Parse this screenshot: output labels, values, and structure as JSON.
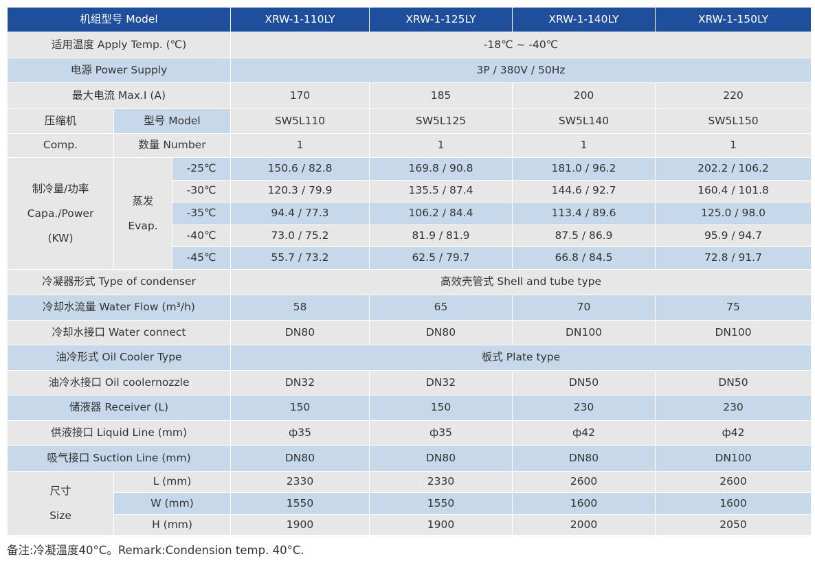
{
  "table": {
    "header": [
      "机组型号 Model",
      "XRW-1-110LY",
      "XRW-1-125LY",
      "XRW-1-140LY",
      "XRW-1-150LY"
    ],
    "apply_temp": [
      "适用温度 Apply Temp. (℃)",
      "-18℃ ~ -40℃"
    ],
    "power": [
      "电源 Power Supply",
      "3P / 380V / 50Hz"
    ],
    "max_current": [
      "最大电流 Max.I (A)",
      170,
      185,
      200,
      220
    ],
    "compressor_model": [
      "压缩机",
      "型号 Model",
      "SW5L110",
      "SW5L125",
      "SW5L140",
      "SW5L150"
    ],
    "compressor_number": [
      "Comp.",
      "数量 Number",
      1,
      1,
      1,
      1
    ],
    "capacity": {
      "label": [
        "制冷量/功率",
        "Capa./Power",
        "(KW)"
      ],
      "evap": [
        "蒸发",
        "Evap."
      ],
      "rows": [
        [
          "-25℃",
          "150.6 / 82.8",
          "169.8 / 90.8",
          "181.0 / 96.2",
          "202.2 / 106.2"
        ],
        [
          "-30℃",
          "120.3 / 79.9",
          "135.5 / 87.4",
          "144.6 / 92.7",
          "160.4 / 101.8"
        ],
        [
          "-35℃",
          "94.4 / 77.3",
          "106.2 / 84.4",
          "113.4 / 89.6",
          "125.0 / 98.0"
        ],
        [
          "-40℃",
          "73.0 / 75.2",
          "81.9 / 81.9",
          "87.5 / 86.9",
          "95.9 / 94.7"
        ],
        [
          "-45℃",
          "55.7 / 73.2",
          "62.5 / 79.7",
          "66.8 / 84.5",
          "72.8 / 91.7"
        ]
      ]
    },
    "condenser_type": [
      "冷凝器形式 Type of condenser",
      "高效壳管式 Shell and tube type"
    ],
    "water_flow": [
      "冷却水流量 Water Flow (m³/h)",
      58,
      65,
      70,
      75
    ],
    "water_connect": [
      "冷却水接口 Water connect",
      "DN80",
      "DN80",
      "DN100",
      "DN100"
    ],
    "oil_cooler_type": [
      "油冷形式 Oil Cooler Type",
      "板式 Plate type"
    ],
    "oil_nozzle": [
      "油冷水接口 Oil coolernozzle",
      "DN32",
      "DN32",
      "DN50",
      "DN50"
    ],
    "receiver": [
      "储液器 Receiver (L)",
      150,
      150,
      230,
      230
    ],
    "liquid_line": [
      "供液接口 Liquid Line (mm)",
      "ф35",
      "ф35",
      "ф42",
      "ф42"
    ],
    "suction_line": [
      "吸气接口 Suction Line (mm)",
      "DN80",
      "DN80",
      "DN80",
      "DN100"
    ],
    "size": {
      "label": [
        "尺寸",
        "Size"
      ],
      "rows": [
        [
          "L (mm)",
          2330,
          2330,
          2600,
          2600
        ],
        [
          "W (mm)",
          1550,
          1550,
          1600,
          1600
        ],
        [
          "H (mm)",
          1900,
          1900,
          2000,
          2050
        ]
      ]
    }
  },
  "remark": "备注:冷凝温度40°C。Remark:Condension temp. 40°C."
}
